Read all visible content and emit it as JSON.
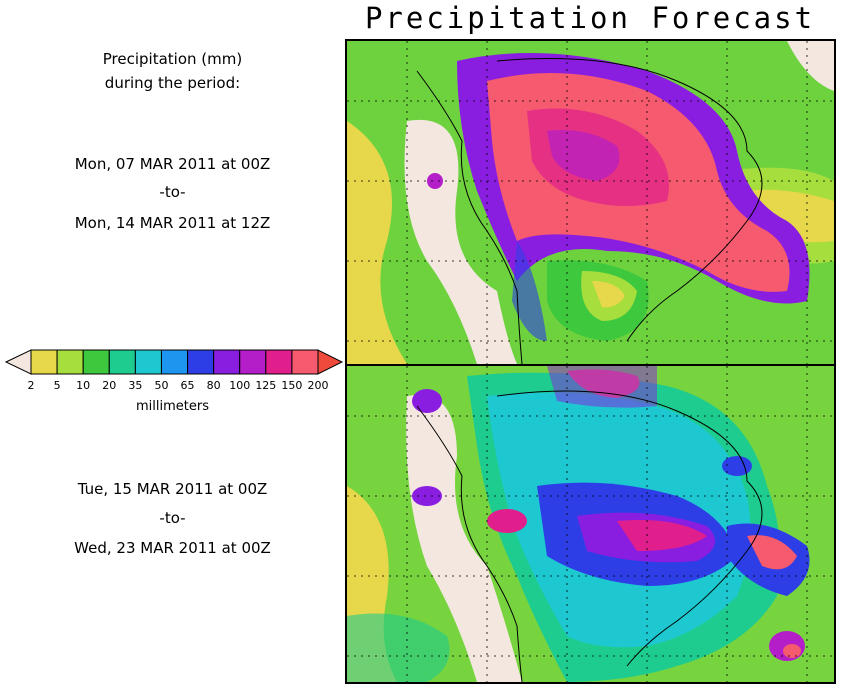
{
  "title": "Precipitation Forecast",
  "legend": {
    "heading_line1": "Precipitation (mm)",
    "heading_line2": "during the period:",
    "units": "millimeters",
    "ticks": [
      "2",
      "5",
      "10",
      "20",
      "35",
      "50",
      "65",
      "80",
      "100",
      "125",
      "150",
      "200"
    ],
    "colors": [
      "#f3e7e0",
      "#e6d84a",
      "#a6de3e",
      "#3ec83e",
      "#1ecc90",
      "#1ec8d0",
      "#1e96f0",
      "#2e3ee6",
      "#8a1ee0",
      "#b41ec8",
      "#e01e8c",
      "#f55a6e",
      "#f04a3c"
    ]
  },
  "periods": [
    {
      "start": "Mon, 07 MAR 2011 at 00Z",
      "sep": "-to-",
      "end": "Mon, 14 MAR 2011 at 12Z"
    },
    {
      "start": "Tue, 15 MAR 2011 at 00Z",
      "sep": "-to-",
      "end": "Wed, 23 MAR 2011 at 00Z"
    }
  ]
}
